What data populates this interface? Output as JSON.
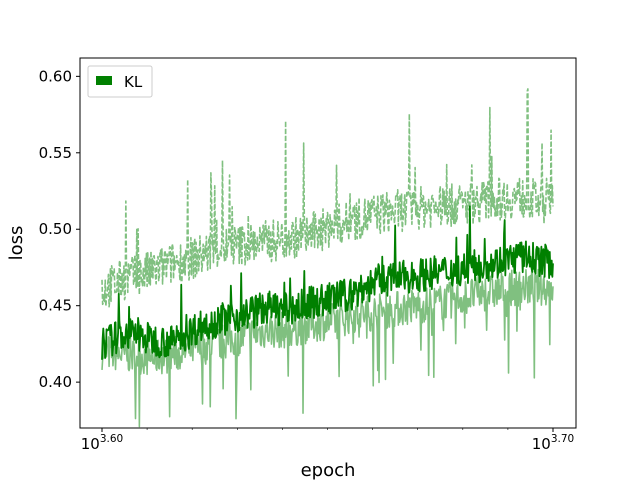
{
  "chart_data": {
    "type": "line",
    "title": "",
    "xlabel": "epoch",
    "ylabel": "loss",
    "x_scale": "log",
    "xlim": [
      3981,
      5012
    ],
    "ylim": [
      0.37,
      0.612
    ],
    "x_ticks": [
      {
        "value": 3981,
        "base": "10",
        "exp": "3.60"
      },
      {
        "value": 5012,
        "base": "10",
        "exp": "3.70"
      }
    ],
    "y_ticks": [
      {
        "value": 0.4,
        "label": "0.40"
      },
      {
        "value": 0.45,
        "label": "0.45"
      },
      {
        "value": 0.5,
        "label": "0.50"
      },
      {
        "value": 0.55,
        "label": "0.55"
      },
      {
        "value": 0.6,
        "label": "0.60"
      }
    ],
    "grid": false,
    "legend": {
      "position": "top-left",
      "entries": [
        "KL"
      ]
    },
    "series": [
      {
        "name": "KL",
        "color": "#008000",
        "style": "solid",
        "x": [
          3981,
          4030,
          4080,
          4130,
          4180,
          4230,
          4280,
          4330,
          4380,
          4430,
          4480,
          4530,
          4580,
          4630,
          4680,
          4730,
          4780,
          4830,
          4880,
          4930,
          4980,
          5012
        ],
        "y": [
          0.425,
          0.432,
          0.428,
          0.426,
          0.436,
          0.441,
          0.444,
          0.449,
          0.447,
          0.452,
          0.455,
          0.458,
          0.466,
          0.468,
          0.47,
          0.472,
          0.474,
          0.476,
          0.479,
          0.482,
          0.48,
          0.478
        ]
      },
      {
        "color": "#80c080",
        "style": "dashed",
        "band": "upper",
        "x": [
          3981,
          4030,
          4080,
          4130,
          4180,
          4230,
          4280,
          4330,
          4380,
          4430,
          4480,
          4530,
          4580,
          4630,
          4680,
          4730,
          4780,
          4830,
          4880,
          4930,
          4980,
          5012
        ],
        "y": [
          0.46,
          0.468,
          0.472,
          0.478,
          0.482,
          0.488,
          0.49,
          0.492,
          0.494,
          0.497,
          0.502,
          0.506,
          0.51,
          0.512,
          0.514,
          0.515,
          0.516,
          0.518,
          0.52,
          0.521,
          0.518,
          0.515
        ]
      },
      {
        "color": "#80c080",
        "style": "solid",
        "band": "lower",
        "x": [
          3981,
          4030,
          4080,
          4130,
          4180,
          4230,
          4280,
          4330,
          4380,
          4430,
          4480,
          4530,
          4580,
          4630,
          4680,
          4730,
          4780,
          4830,
          4880,
          4930,
          4980,
          5012
        ],
        "y": [
          0.42,
          0.418,
          0.416,
          0.418,
          0.422,
          0.426,
          0.43,
          0.434,
          0.434,
          0.438,
          0.44,
          0.444,
          0.446,
          0.448,
          0.45,
          0.452,
          0.455,
          0.458,
          0.46,
          0.462,
          0.462,
          0.462
        ]
      }
    ]
  }
}
